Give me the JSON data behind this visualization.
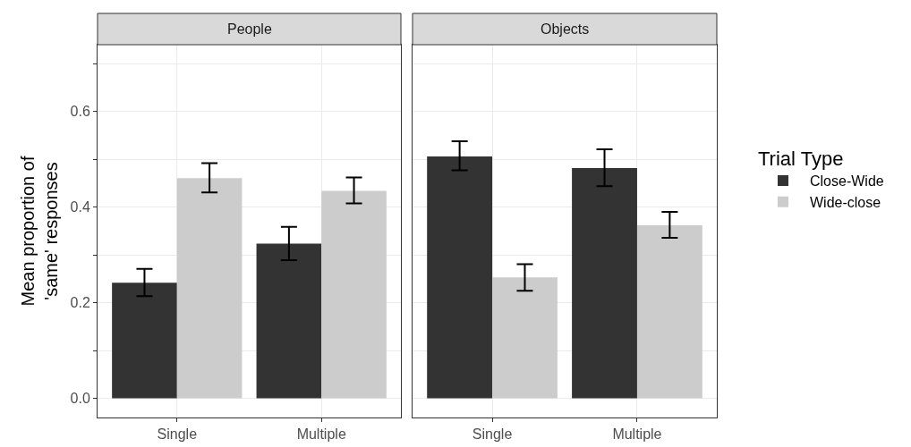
{
  "chart_data": [
    {
      "type": "bar",
      "title": "People",
      "ylabel": "Mean proportion of\n'same' responses",
      "categories": [
        "Single",
        "Multiple"
      ],
      "series": [
        {
          "color": "#333333",
          "values": [
            0.242,
            0.324
          ],
          "errors": [
            [
              0.214,
              0.271
            ],
            [
              0.289,
              0.359
            ]
          ]
        },
        {
          "color": "#cccccc",
          "values": [
            0.461,
            0.434
          ],
          "errors": [
            [
              0.431,
              0.492
            ],
            [
              0.408,
              0.462
            ]
          ]
        }
      ],
      "ylim": [
        -0.04,
        0.74
      ],
      "yticks": [
        {
          "value": 0,
          "label": "0.0"
        },
        {
          "value": 0.1,
          "label": null
        },
        {
          "value": 0.2,
          "label": "0.2"
        },
        {
          "value": 0.3,
          "label": null
        },
        {
          "value": 0.4,
          "label": "0.4"
        },
        {
          "value": 0.5,
          "label": null
        },
        {
          "value": 0.6,
          "label": "0.6"
        },
        {
          "value": 0.7,
          "label": null
        }
      ],
      "grid": true,
      "legend": false
    },
    {
      "type": "bar",
      "title": "Objects",
      "legend_title": "Trial Type",
      "categories": [
        "Single",
        "Multiple"
      ],
      "series": [
        {
          "name": "Close-Wide",
          "color": "#333333",
          "values": [
            0.506,
            0.482
          ],
          "errors": [
            [
              0.477,
              0.538
            ],
            [
              0.444,
              0.521
            ]
          ]
        },
        {
          "name": "Wide-close",
          "color": "#cccccc",
          "values": [
            0.253,
            0.362
          ],
          "errors": [
            [
              0.225,
              0.281
            ],
            [
              0.336,
              0.39
            ]
          ]
        }
      ],
      "ylim": [
        -0.04,
        0.74
      ],
      "yticks": [
        {
          "value": 0,
          "label": null
        },
        {
          "value": 0.1,
          "label": null
        },
        {
          "value": 0.2,
          "label": null
        },
        {
          "value": 0.3,
          "label": null
        },
        {
          "value": 0.4,
          "label": null
        },
        {
          "value": 0.5,
          "label": null
        },
        {
          "value": 0.6,
          "label": null
        },
        {
          "value": 0.7,
          "label": null
        }
      ],
      "tick_labels": "x",
      "grid": true,
      "legend": "right"
    }
  ]
}
